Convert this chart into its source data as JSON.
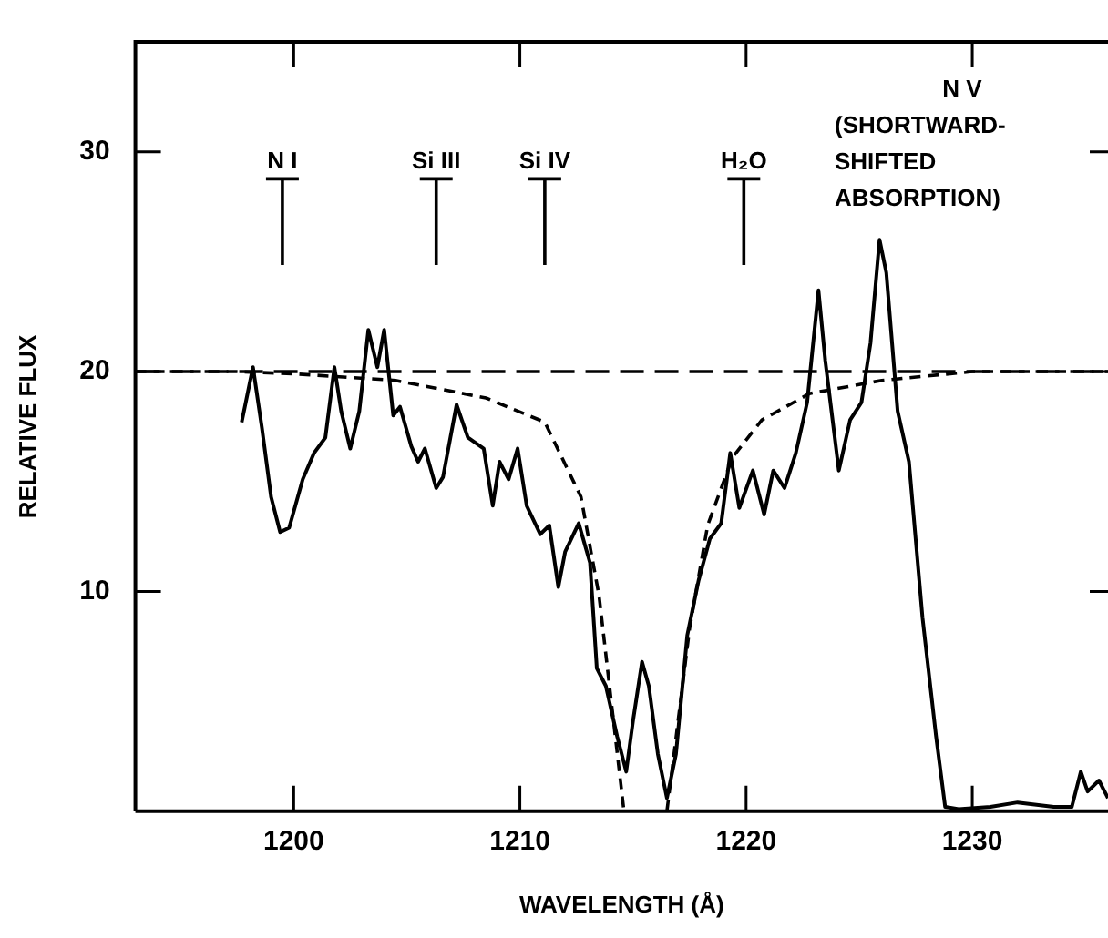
{
  "chart_data": {
    "type": "line",
    "xlabel": "WAVELENGTH (Å)",
    "ylabel": "RELATIVE FLUX",
    "xlim": [
      1193,
      1236
    ],
    "xticks": [
      1200,
      1210,
      1220,
      1230
    ],
    "ylim": [
      0,
      35
    ],
    "yticks": [
      10,
      20,
      30
    ],
    "grid": false,
    "legend": false,
    "marker": "none",
    "series": [
      {
        "color": "#000000",
        "line_style": "solid",
        "x": [
          1197.7,
          1198.2,
          1198.6,
          1199.0,
          1199.4,
          1199.8,
          1200.4,
          1200.9,
          1201.4,
          1201.8,
          1202.1,
          1202.5,
          1202.9,
          1203.3,
          1203.7,
          1204.0,
          1204.4,
          1204.7,
          1205.2,
          1205.5,
          1205.8,
          1206.3,
          1206.6,
          1207.2,
          1207.7,
          1208.4,
          1208.8,
          1209.1,
          1209.5,
          1209.9,
          1210.3,
          1210.9,
          1211.3,
          1211.7,
          1212.0,
          1212.6,
          1213.1,
          1213.4,
          1213.8,
          1214.3,
          1214.7,
          1215.0,
          1215.4,
          1215.7,
          1216.1,
          1216.5,
          1216.9,
          1217.4,
          1217.9,
          1218.4,
          1218.9,
          1219.3,
          1219.7,
          1220.3,
          1220.8,
          1221.2,
          1221.7,
          1222.2,
          1222.7,
          1223.2,
          1223.5,
          1224.1,
          1224.6,
          1225.1,
          1225.5,
          1225.9,
          1226.2,
          1226.7,
          1227.2,
          1227.8,
          1228.4,
          1228.8,
          1229.4,
          1230.8,
          1232.0,
          1233.6,
          1234.4,
          1234.8,
          1235.1,
          1235.6,
          1236.0
        ],
        "values": [
          17.7,
          20.2,
          17.4,
          14.3,
          12.7,
          12.9,
          15.1,
          16.3,
          17.0,
          20.2,
          18.2,
          16.5,
          18.2,
          21.9,
          20.2,
          21.9,
          18.0,
          18.4,
          16.6,
          15.9,
          16.5,
          14.7,
          15.2,
          18.5,
          17.0,
          16.5,
          13.9,
          15.9,
          15.1,
          16.5,
          13.9,
          12.6,
          13.0,
          10.2,
          11.8,
          13.1,
          11.3,
          6.5,
          5.7,
          3.4,
          1.8,
          4.1,
          6.8,
          5.7,
          2.6,
          0.6,
          2.6,
          8.0,
          10.5,
          12.4,
          13.1,
          16.3,
          13.8,
          15.5,
          13.5,
          15.5,
          14.7,
          16.3,
          18.6,
          23.7,
          20.5,
          15.5,
          17.8,
          18.6,
          21.3,
          26.0,
          24.5,
          18.2,
          15.9,
          8.8,
          3.4,
          0.2,
          0.1,
          0.2,
          0.4,
          0.2,
          0.2,
          1.8,
          0.9,
          1.4,
          0.6
        ]
      },
      {
        "color": "#000000",
        "line_style": "dashed",
        "x": [
          1193,
          1236
        ],
        "values": [
          20,
          20
        ]
      },
      {
        "color": "#000000",
        "line_style": "dotted",
        "x": [
          1193,
          1197.5,
          1200,
          1204.5,
          1208.5,
          1211.1,
          1212.7,
          1213.5,
          1214.6
        ],
        "values": [
          20,
          20,
          19.9,
          19.6,
          18.8,
          17.7,
          14.3,
          9.8,
          0
        ]
      },
      {
        "color": "#000000",
        "line_style": "dotted",
        "x": [
          1216.5,
          1217.5,
          1218.3,
          1219.4,
          1220.7,
          1222.8,
          1226,
          1230,
          1236
        ],
        "values": [
          0,
          8.3,
          13.0,
          16.1,
          17.8,
          19.0,
          19.6,
          20,
          20
        ]
      }
    ],
    "ref_lines": [
      {
        "axis": "x",
        "value": 1199.5,
        "label": "N I"
      },
      {
        "axis": "x",
        "value": 1206.3,
        "label": "Si III"
      },
      {
        "axis": "x",
        "value": 1211.1,
        "label": "Si IV"
      },
      {
        "axis": "x",
        "value": 1219.9,
        "label": "H₂O"
      }
    ],
    "annotations": [
      "N V\n(SHORTWARD-\nSHIFTED\nABSORPTION)"
    ]
  }
}
